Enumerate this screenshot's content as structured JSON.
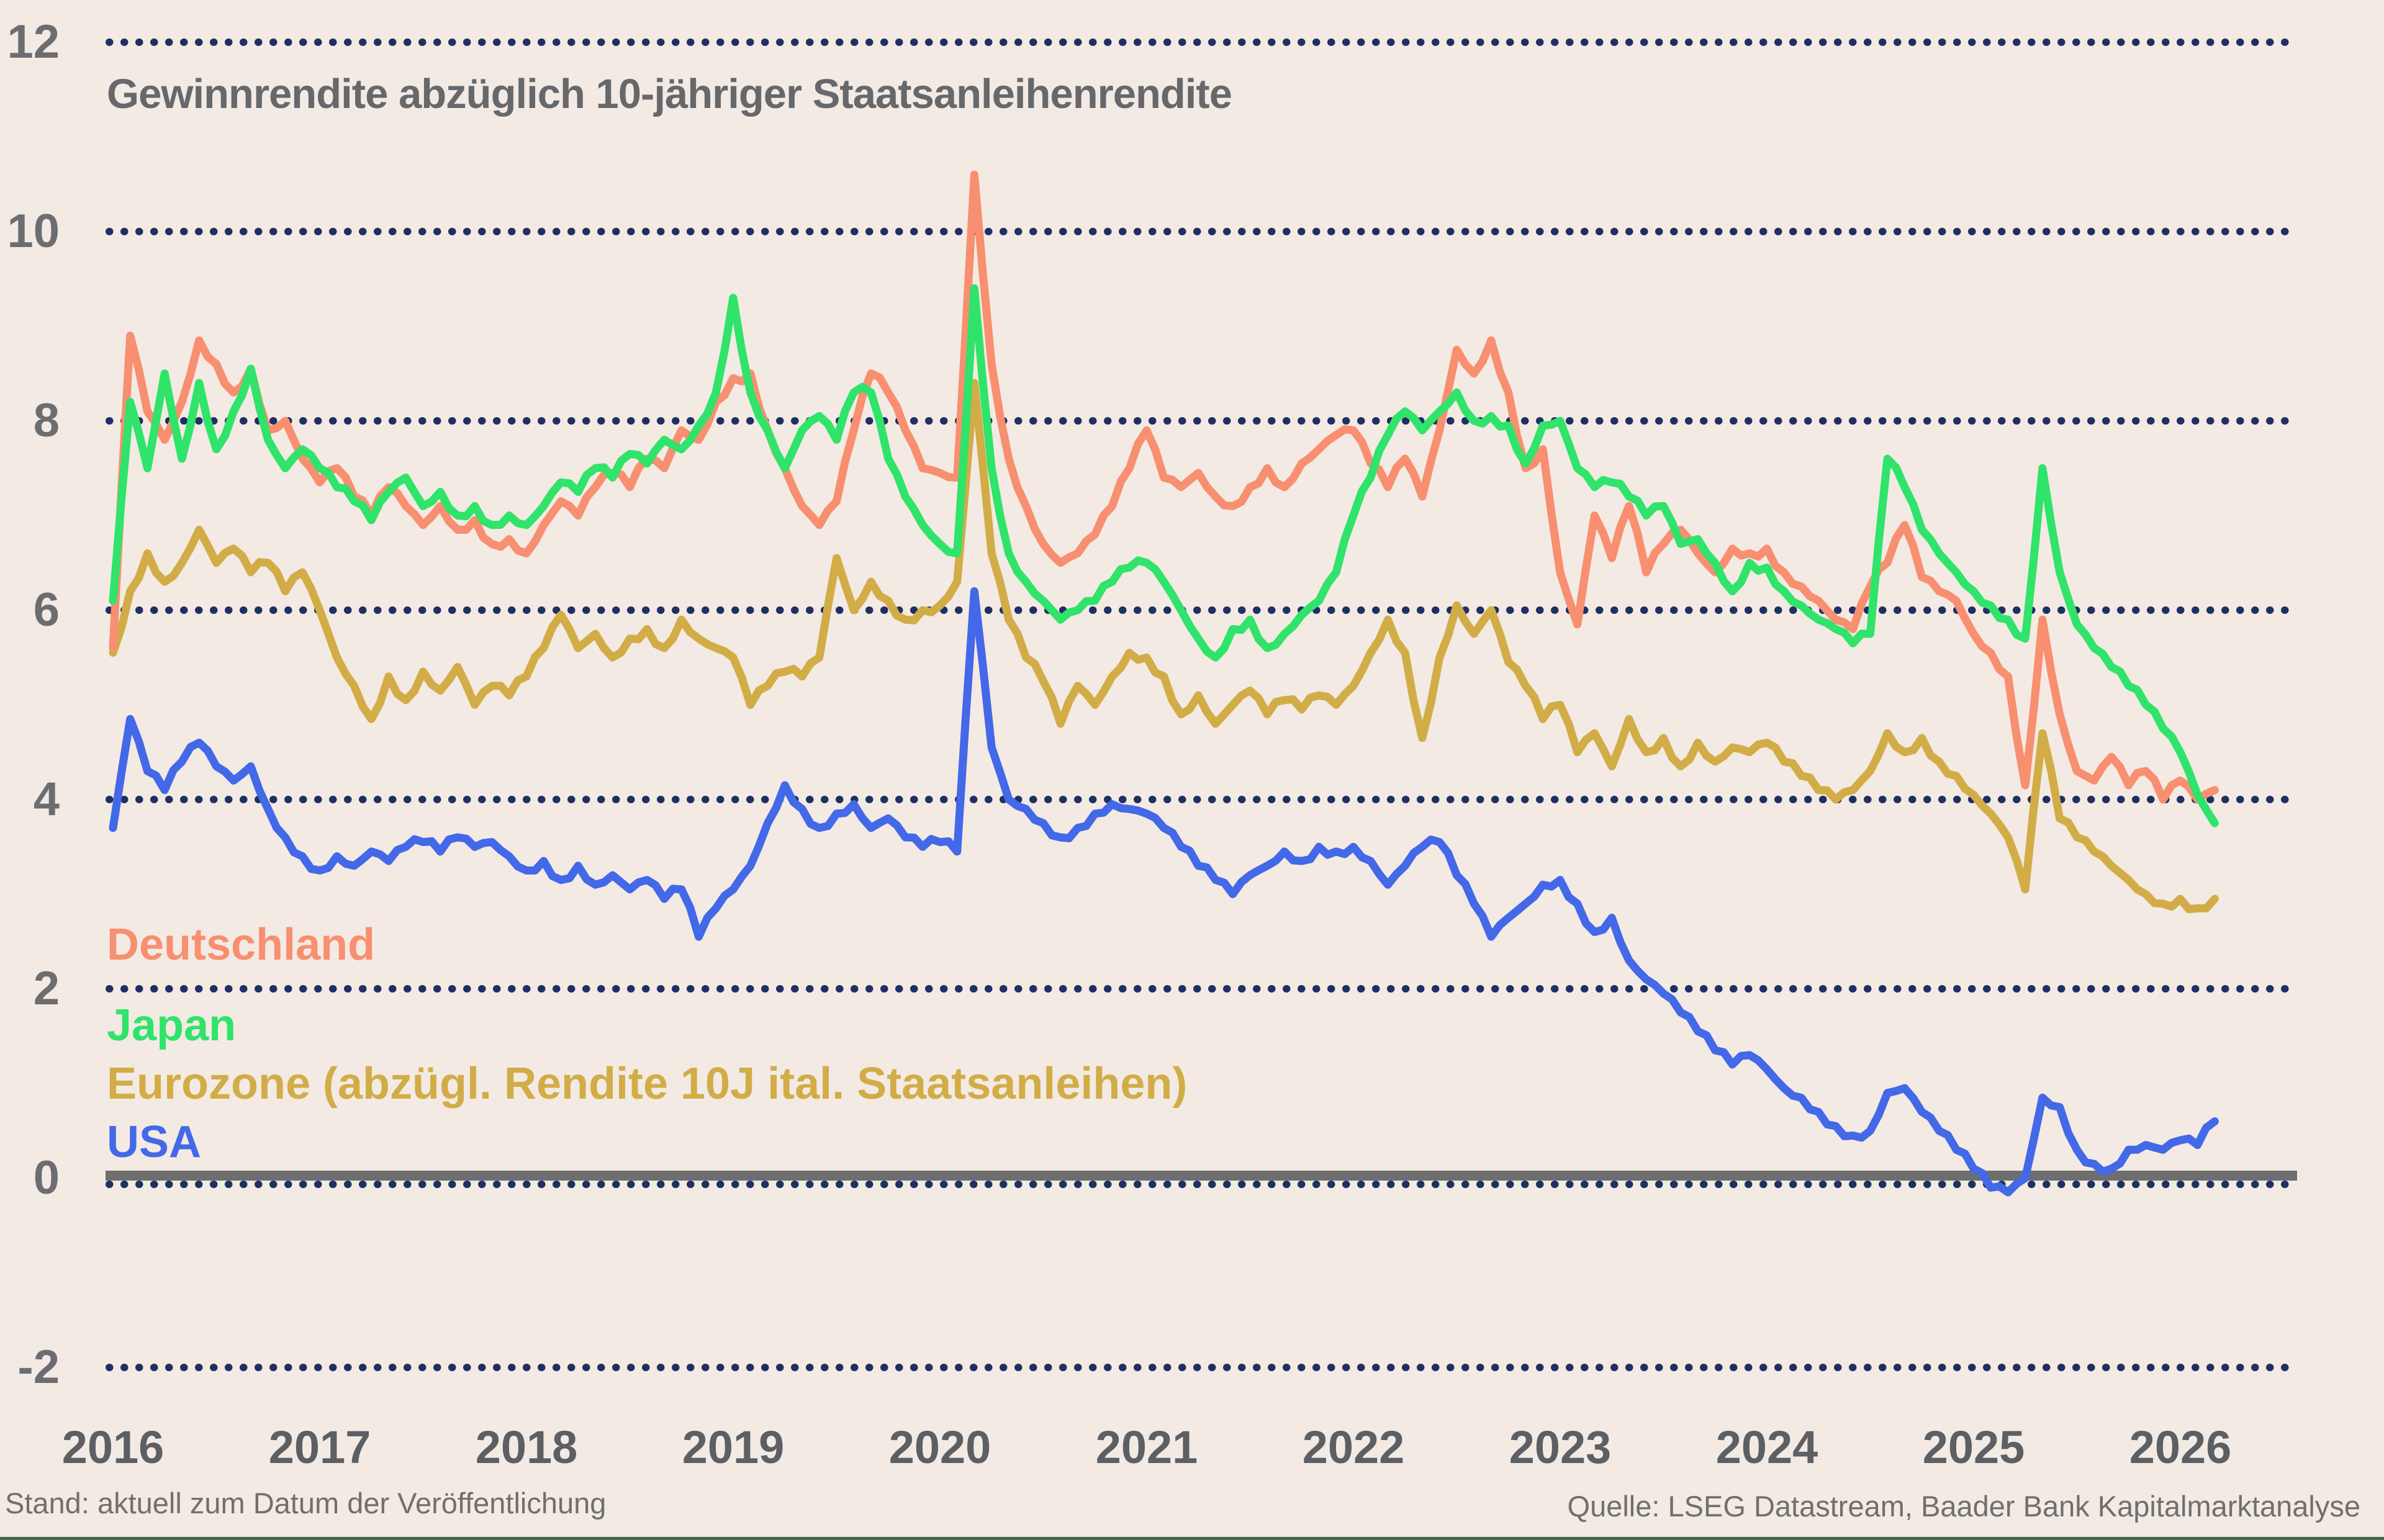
{
  "title": "Gewinnrendite abzüglich 10-jähriger Staatsanleihenrendite",
  "footnotes": {
    "stand": "Stand: aktuell zum Datum der Veröffentlichung",
    "quelle": "Quelle: LSEG Datastream, Baader Bank Kapitalmarktanalyse"
  },
  "colors": {
    "background": "#F3EAE3",
    "grid_dots": "#1E3063",
    "zero_line": "#6E6E6E",
    "title_text": "#66686B",
    "axis_text": "#5C5F64",
    "footer_rule": "#40684F",
    "deutschland": "#F78F70",
    "japan": "#30E36A",
    "eurozone": "#D2AC47",
    "usa": "#4368E8"
  },
  "chart_data": {
    "type": "line",
    "title": "Gewinnrendite abzüglich 10-jähriger Staatsanleihenrendite",
    "xlabel": "",
    "ylabel": "",
    "ylim": [
      -2,
      12
    ],
    "y_ticks": [
      12,
      10,
      8,
      6,
      4,
      2,
      0,
      -2
    ],
    "x_ticks": [
      2016,
      2017,
      2018,
      2019,
      2020,
      2021,
      2022,
      2023,
      2024,
      2025,
      2026
    ],
    "grid": "dotted horizontal lines, solid line at zero",
    "legend_position": "inside lower-left",
    "x_start": 2016.0,
    "x_step": 0.08333,
    "series": [
      {
        "name": "USA",
        "color": "#4368E8",
        "values": [
          3.7,
          4.85,
          4.3,
          4.1,
          4.4,
          4.6,
          4.35,
          4.2,
          4.35,
          3.9,
          3.6,
          3.4,
          3.25,
          3.4,
          3.3,
          3.45,
          3.35,
          3.5,
          3.55,
          3.45,
          3.6,
          3.5,
          3.55,
          3.4,
          3.25,
          3.35,
          3.15,
          3.3,
          3.1,
          3.2,
          3.05,
          3.15,
          2.95,
          3.05,
          2.55,
          2.85,
          3.05,
          3.3,
          3.75,
          4.15,
          3.9,
          3.7,
          3.85,
          3.95,
          3.7,
          3.8,
          3.6,
          3.5,
          3.55,
          3.45,
          6.2,
          4.55,
          4.0,
          3.9,
          3.75,
          3.6,
          3.7,
          3.85,
          3.95,
          3.9,
          3.85,
          3.7,
          3.5,
          3.3,
          3.15,
          3.0,
          3.2,
          3.3,
          3.45,
          3.35,
          3.5,
          3.45,
          3.5,
          3.35,
          3.1,
          3.3,
          3.5,
          3.55,
          3.2,
          2.9,
          2.55,
          2.75,
          2.9,
          3.1,
          3.15,
          2.9,
          2.6,
          2.75,
          2.3,
          2.1,
          1.95,
          1.75,
          1.55,
          1.35,
          1.2,
          1.3,
          1.15,
          0.95,
          0.85,
          0.7,
          0.55,
          0.45,
          0.5,
          0.9,
          0.95,
          0.7,
          0.5,
          0.3,
          0.1,
          -0.1,
          -0.15,
          0.0,
          0.85,
          0.75,
          0.3,
          0.15,
          0.1,
          0.3,
          0.35,
          0.3,
          0.4,
          0.35,
          0.6
        ]
      },
      {
        "name": "Eurozone (abzügl. Rendite 10J ital. Staatsanleihen)",
        "color": "#D2AC47",
        "values": [
          5.55,
          6.2,
          6.6,
          6.3,
          6.5,
          6.85,
          6.5,
          6.65,
          6.4,
          6.5,
          6.2,
          6.4,
          6.0,
          5.5,
          5.2,
          4.85,
          5.3,
          5.05,
          5.35,
          5.15,
          5.4,
          5.0,
          5.2,
          5.1,
          5.3,
          5.6,
          5.95,
          5.6,
          5.75,
          5.5,
          5.7,
          5.8,
          5.6,
          5.9,
          5.7,
          5.6,
          5.5,
          5.0,
          5.2,
          5.35,
          5.3,
          5.5,
          6.55,
          6.0,
          6.3,
          6.1,
          5.9,
          6.0,
          6.05,
          6.3,
          8.4,
          6.6,
          5.9,
          5.5,
          5.25,
          4.8,
          5.2,
          5.0,
          5.3,
          5.55,
          5.5,
          5.3,
          4.9,
          5.1,
          4.8,
          5.0,
          5.15,
          4.9,
          5.05,
          4.95,
          5.1,
          5.0,
          5.2,
          5.55,
          5.9,
          5.55,
          4.65,
          5.5,
          6.05,
          5.75,
          6.0,
          5.45,
          5.2,
          4.85,
          5.0,
          4.5,
          4.7,
          4.35,
          4.85,
          4.5,
          4.65,
          4.35,
          4.6,
          4.4,
          4.55,
          4.5,
          4.6,
          4.4,
          4.25,
          4.1,
          4.0,
          4.1,
          4.3,
          4.7,
          4.5,
          4.65,
          4.4,
          4.25,
          4.05,
          3.85,
          3.6,
          3.05,
          4.7,
          3.8,
          3.6,
          3.45,
          3.3,
          3.15,
          3.0,
          2.9,
          2.95,
          2.85,
          2.95
        ]
      },
      {
        "name": "Deutschland",
        "color": "#F78F70",
        "values": [
          5.6,
          8.9,
          8.1,
          7.8,
          8.2,
          8.85,
          8.6,
          8.3,
          8.55,
          7.9,
          8.0,
          7.6,
          7.35,
          7.5,
          7.2,
          7.0,
          7.3,
          7.1,
          6.9,
          7.1,
          6.85,
          6.95,
          6.7,
          6.75,
          6.6,
          6.9,
          7.15,
          7.0,
          7.3,
          7.45,
          7.3,
          7.6,
          7.5,
          7.9,
          7.8,
          8.2,
          8.45,
          8.5,
          7.9,
          7.5,
          7.1,
          6.9,
          7.15,
          7.9,
          8.5,
          8.3,
          7.9,
          7.5,
          7.45,
          7.4,
          10.6,
          8.6,
          7.6,
          7.1,
          6.7,
          6.5,
          6.6,
          6.8,
          7.1,
          7.5,
          7.9,
          7.4,
          7.3,
          7.45,
          7.2,
          7.1,
          7.3,
          7.5,
          7.3,
          7.55,
          7.7,
          7.85,
          7.9,
          7.55,
          7.3,
          7.6,
          7.2,
          7.9,
          8.75,
          8.5,
          8.85,
          8.3,
          7.5,
          7.7,
          6.4,
          5.85,
          7.0,
          6.55,
          7.1,
          6.4,
          6.7,
          6.85,
          6.6,
          6.4,
          6.65,
          6.6,
          6.65,
          6.4,
          6.25,
          6.1,
          5.9,
          5.8,
          6.25,
          6.5,
          6.9,
          6.35,
          6.2,
          6.1,
          5.75,
          5.55,
          5.3,
          4.15,
          5.9,
          4.9,
          4.3,
          4.2,
          4.45,
          4.15,
          4.3,
          4.0,
          4.2,
          4.0,
          4.1
        ]
      },
      {
        "name": "Japan",
        "color": "#30E36A",
        "values": [
          6.1,
          8.2,
          7.5,
          8.5,
          7.6,
          8.4,
          7.7,
          8.1,
          8.55,
          7.8,
          7.5,
          7.7,
          7.5,
          7.3,
          7.15,
          6.95,
          7.25,
          7.4,
          7.1,
          7.25,
          7.0,
          7.1,
          6.9,
          7.0,
          6.9,
          7.1,
          7.35,
          7.25,
          7.5,
          7.4,
          7.65,
          7.55,
          7.8,
          7.7,
          7.95,
          8.3,
          9.3,
          8.3,
          7.9,
          7.5,
          7.9,
          8.05,
          7.8,
          8.3,
          8.3,
          7.6,
          7.2,
          6.9,
          6.7,
          6.6,
          9.4,
          7.5,
          6.6,
          6.3,
          6.1,
          5.9,
          6.0,
          6.1,
          6.3,
          6.45,
          6.5,
          6.3,
          6.0,
          5.7,
          5.5,
          5.8,
          5.9,
          5.6,
          5.75,
          5.95,
          6.1,
          6.4,
          7.0,
          7.4,
          7.85,
          8.1,
          7.9,
          8.1,
          8.3,
          8.0,
          8.05,
          7.95,
          7.55,
          7.95,
          8.0,
          7.5,
          7.3,
          7.35,
          7.2,
          7.0,
          7.1,
          6.7,
          6.75,
          6.5,
          6.2,
          6.5,
          6.45,
          6.2,
          6.05,
          5.9,
          5.8,
          5.65,
          5.75,
          7.6,
          7.3,
          6.85,
          6.6,
          6.4,
          6.2,
          6.05,
          5.9,
          5.7,
          7.5,
          6.4,
          5.85,
          5.6,
          5.4,
          5.2,
          5.0,
          4.75,
          4.5,
          4.05,
          3.75
        ]
      }
    ]
  },
  "legend": [
    {
      "label": "Deutschland",
      "color": "#F78F70"
    },
    {
      "label": "Japan",
      "color": "#30E36A"
    },
    {
      "label": "Eurozone (abzügl. Rendite 10J ital. Staatsanleihen)",
      "color": "#D2AC47"
    },
    {
      "label": "USA",
      "color": "#4368E8"
    }
  ]
}
